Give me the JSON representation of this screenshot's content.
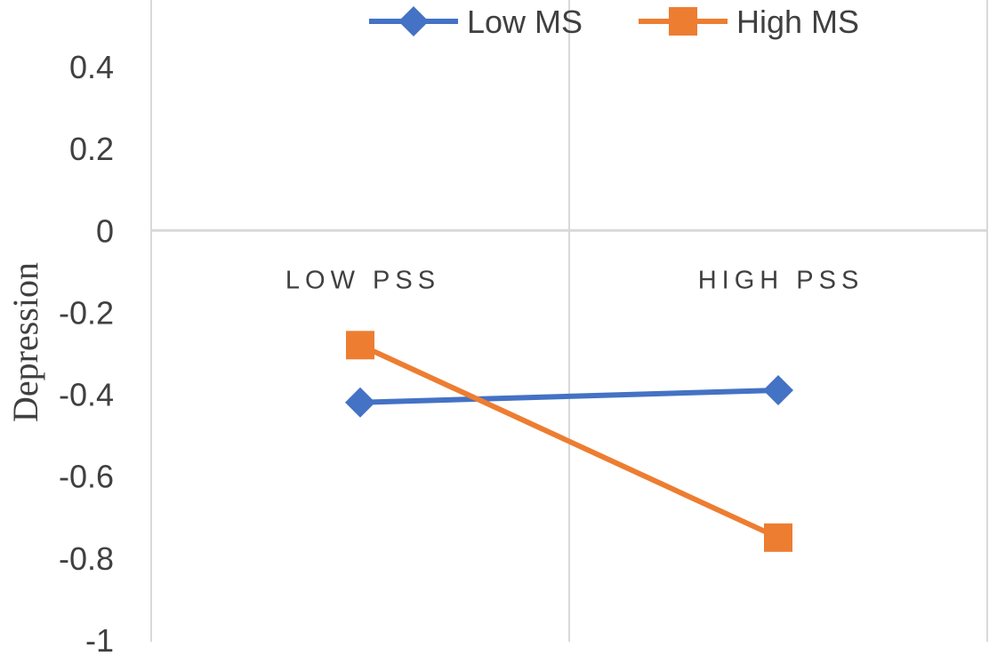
{
  "chart_data": {
    "type": "line",
    "categories": [
      "LOW PSS",
      "HIGH PSS"
    ],
    "series": [
      {
        "name": "Low MS",
        "values": [
          -0.42,
          -0.39
        ],
        "color": "#4472C4",
        "marker": "diamond"
      },
      {
        "name": "High MS",
        "values": [
          -0.28,
          -0.75
        ],
        "color": "#ED7D31",
        "marker": "square"
      }
    ],
    "ylabel": "Depression",
    "ylim": [
      -1,
      0.4
    ],
    "yticks": [
      0.4,
      0.2,
      0,
      -0.2,
      -0.4,
      -0.6,
      -0.8,
      -1
    ],
    "ytick_labels": [
      "0.4",
      "0.2",
      "0",
      "-0.2",
      "-0.4",
      "-0.6",
      "-0.8",
      "-1"
    ],
    "grid": true,
    "legend_position": "top-right"
  }
}
